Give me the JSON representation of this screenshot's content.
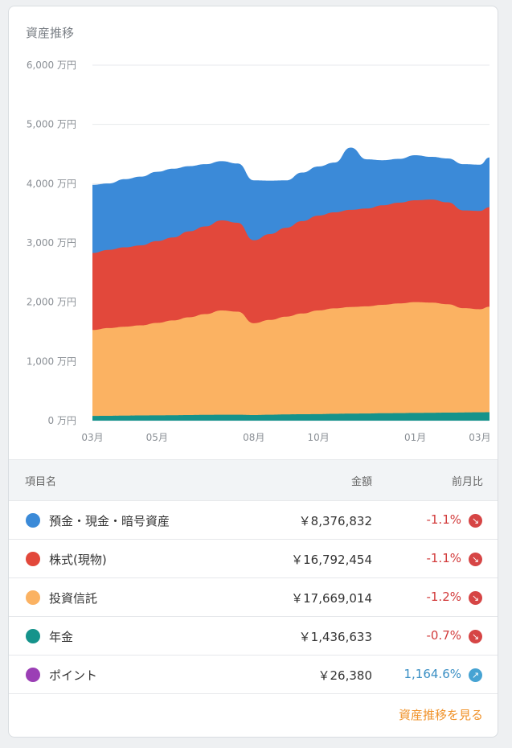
{
  "card": {
    "title": "資産推移",
    "footer_link": "資産推移を見る"
  },
  "colors": {
    "deposits": "#3b8ad8",
    "stocks": "#e2483b",
    "funds": "#fbb262",
    "pension": "#15938b",
    "points": "#9b3fb5",
    "grid": "#e7e9ec"
  },
  "chart_data": {
    "type": "area",
    "stacked": true,
    "y_unit": "万円",
    "ylim": [
      0,
      6000
    ],
    "y_ticks": [
      "6,000 万円",
      "5,000 万円",
      "4,000 万円",
      "3,000 万円",
      "2,000 万円",
      "1,000 万円",
      "0 万円"
    ],
    "x_ticks": [
      "03月",
      "05月",
      "08月",
      "10月",
      "01月",
      "03月"
    ],
    "x_tick_months": [
      0,
      2,
      5,
      7,
      10,
      12
    ],
    "x_months": [
      0,
      0.5,
      1,
      1.5,
      2,
      2.5,
      3,
      3.5,
      4,
      4.5,
      5,
      5.5,
      6,
      6.5,
      7,
      7.5,
      8,
      8.5,
      9,
      9.5,
      10,
      10.5,
      11,
      11.5,
      12,
      12.3
    ],
    "series": [
      {
        "key": "pension",
        "values": [
          80,
          82,
          85,
          88,
          90,
          92,
          95,
          98,
          100,
          100,
          95,
          100,
          105,
          108,
          110,
          115,
          118,
          120,
          125,
          128,
          130,
          132,
          135,
          138,
          140,
          142
        ]
      },
      {
        "key": "funds",
        "values": [
          1450,
          1480,
          1500,
          1520,
          1560,
          1600,
          1650,
          1700,
          1760,
          1740,
          1550,
          1600,
          1650,
          1700,
          1750,
          1780,
          1800,
          1810,
          1830,
          1850,
          1870,
          1860,
          1830,
          1760,
          1740,
          1780
        ]
      },
      {
        "key": "stocks",
        "values": [
          1300,
          1320,
          1340,
          1350,
          1380,
          1400,
          1450,
          1480,
          1520,
          1500,
          1400,
          1450,
          1500,
          1560,
          1600,
          1620,
          1640,
          1650,
          1680,
          1700,
          1720,
          1740,
          1720,
          1650,
          1660,
          1680
        ]
      },
      {
        "key": "deposits",
        "values": [
          1150,
          1120,
          1150,
          1160,
          1170,
          1160,
          1100,
          1050,
          1000,
          1000,
          1010,
          900,
          800,
          820,
          830,
          840,
          1050,
          830,
          760,
          740,
          760,
          720,
          740,
          780,
          780,
          840
        ]
      }
    ]
  },
  "table": {
    "headers": {
      "name": "項目名",
      "amount": "金額",
      "change": "前月比"
    },
    "rows": [
      {
        "key": "deposits",
        "name": "預金・現金・暗号資産",
        "amount": "￥8,376,832",
        "change": "-1.1%",
        "trend": "down"
      },
      {
        "key": "stocks",
        "name": "株式(現物)",
        "amount": "￥16,792,454",
        "change": "-1.1%",
        "trend": "down"
      },
      {
        "key": "funds",
        "name": "投資信託",
        "amount": "￥17,669,014",
        "change": "-1.2%",
        "trend": "down"
      },
      {
        "key": "pension",
        "name": "年金",
        "amount": "￥1,436,633",
        "change": "-0.7%",
        "trend": "down"
      },
      {
        "key": "points",
        "name": "ポイント",
        "amount": "￥26,380",
        "change": "1,164.6%",
        "trend": "up"
      }
    ]
  }
}
